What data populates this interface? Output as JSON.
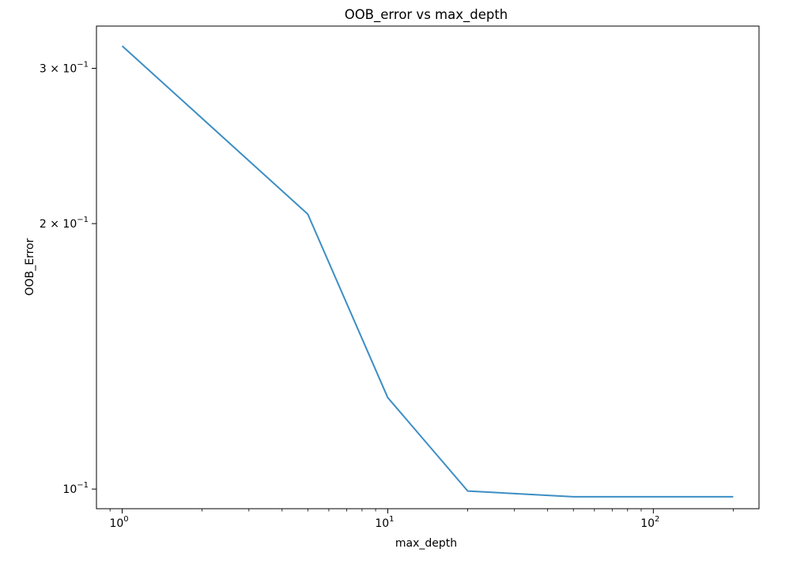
{
  "chart_data": {
    "type": "line",
    "title": "OOB_error vs max_depth",
    "xlabel": "max_depth",
    "ylabel": "OOB_Error",
    "xscale": "log",
    "yscale": "log",
    "xlim": [
      0.8,
      250
    ],
    "ylim": [
      0.095,
      0.335
    ],
    "grid": false,
    "line_color": "#3c8ec4",
    "x_major_ticks": [
      {
        "value": 1,
        "base": "10",
        "exp": "0"
      },
      {
        "value": 10,
        "base": "10",
        "exp": "1"
      },
      {
        "value": 100,
        "base": "10",
        "exp": "2"
      }
    ],
    "y_ticks": [
      {
        "value": 0.3,
        "mant": "3 × 10",
        "exp": "−1"
      },
      {
        "value": 0.2,
        "mant": "2 × 10",
        "exp": "−1"
      },
      {
        "value": 0.1,
        "mant": "10",
        "exp": "−1"
      }
    ],
    "series": [
      {
        "x": [
          1,
          5,
          10,
          20,
          50,
          100,
          200
        ],
        "y": [
          0.318,
          0.205,
          0.127,
          0.0995,
          0.098,
          0.098,
          0.098
        ]
      }
    ]
  }
}
